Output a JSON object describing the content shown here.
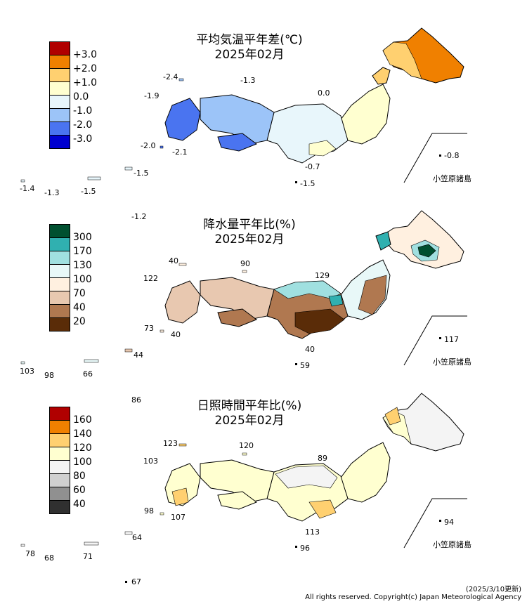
{
  "temperature": {
    "title": "平均気温平年差(℃)",
    "date": "2025年02月",
    "legend": [
      {
        "label": "+3.0",
        "color": "#b00000"
      },
      {
        "label": "+2.0",
        "color": "#f08000"
      },
      {
        "label": "+1.0",
        "color": "#ffd070"
      },
      {
        "label": "0.0",
        "color": "#ffffd0"
      },
      {
        "label": "-1.0",
        "color": "#d8f0f8"
      },
      {
        "label": "-2.0",
        "color": "#6090f0"
      },
      {
        "label": "-3.0",
        "color": "#0000d0"
      }
    ],
    "values": {
      "v1": "-2.4",
      "v2": "-1.3",
      "v3": "-1.9",
      "v4": "0.0",
      "v5": "-2.0",
      "v6": "-2.1",
      "v7": "-0.7",
      "v8": "-1.5",
      "v9": "-0.8",
      "v10": "-1.4",
      "v11": "-1.3",
      "v12": "-1.5",
      "v13": "-1.5",
      "v14": "-1.2"
    },
    "ogasawara": "小笠原諸島"
  },
  "precipitation": {
    "title": "降水量平年比(%)",
    "date": "2025年02月",
    "legend": [
      {
        "label": "300",
        "color": "#005030"
      },
      {
        "label": "170",
        "color": "#30b0b0"
      },
      {
        "label": "130",
        "color": "#a0e0e0"
      },
      {
        "label": "100",
        "color": "#e8f8f8"
      },
      {
        "label": "70",
        "color": "#fff8f0"
      },
      {
        "label": "40",
        "color": "#d0a080"
      },
      {
        "label": "20",
        "color": "#804020"
      }
    ],
    "values": {
      "v1": "40",
      "v2": "90",
      "v3": "122",
      "v4": "129",
      "v5": "73",
      "v6": "40",
      "v7": "40",
      "v8": "59",
      "v9": "117",
      "v10": "103",
      "v11": "98",
      "v12": "66",
      "v13": "44",
      "v14": "86"
    },
    "ogasawara": "小笠原諸島"
  },
  "sunshine": {
    "title": "日照時間平年比(%)",
    "date": "2025年02月",
    "legend": [
      {
        "label": "160",
        "color": "#b00000"
      },
      {
        "label": "140",
        "color": "#f08000"
      },
      {
        "label": "120",
        "color": "#ffd070"
      },
      {
        "label": "100",
        "color": "#ffffd0"
      },
      {
        "label": "80",
        "color": "#f0f0f0"
      },
      {
        "label": "60",
        "color": "#909090"
      },
      {
        "label": "40",
        "color": "#303030"
      }
    ],
    "values": {
      "v1": "123",
      "v2": "120",
      "v3": "103",
      "v4": "89",
      "v5": "98",
      "v6": "107",
      "v7": "113",
      "v8": "96",
      "v9": "94",
      "v10": "78",
      "v11": "68",
      "v12": "71",
      "v13": "64",
      "v14": "67"
    },
    "ogasawara": "小笠原諸島"
  },
  "footer": {
    "updated": "(2025/3/10更新)",
    "copyright": "All rights reserved. Copyright(c) Japan Meteorological Agency"
  }
}
